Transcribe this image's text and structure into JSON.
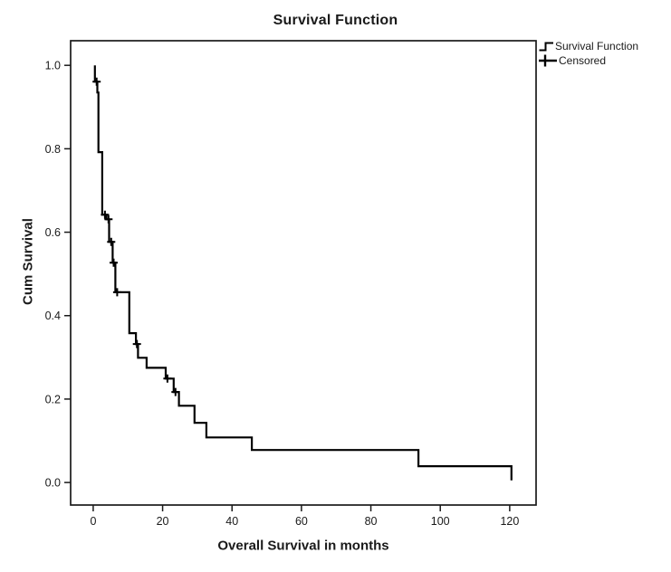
{
  "chart_data": {
    "type": "line",
    "subtype": "kaplan_meier_step_function",
    "title": "Survival Function",
    "xlabel": "Overall Survival in months",
    "ylabel": "Cum Survival",
    "x_ticks": [
      0,
      20,
      40,
      60,
      80,
      100,
      120
    ],
    "y_ticks": [
      0.0,
      0.2,
      0.4,
      0.6,
      0.8,
      1.0
    ],
    "y_tick_labels": [
      "0.0",
      "0.2",
      "0.4",
      "0.6",
      "0.8",
      "1.0"
    ],
    "xlim": [
      -6.5,
      127.6
    ],
    "ylim": [
      -0.054,
      1.059
    ],
    "grid": false,
    "legend_position": "top-right",
    "line_color": "#000000",
    "series": [
      {
        "name": "Survival Function",
        "start": {
          "t": 0.5,
          "s": 1.0
        },
        "steps": [
          [
            0.5,
            0.961
          ],
          [
            1.2,
            0.935
          ],
          [
            1.5,
            0.792
          ],
          [
            2.6,
            0.642
          ],
          [
            3.8,
            0.631
          ],
          [
            4.6,
            0.577
          ],
          [
            5.6,
            0.527
          ],
          [
            6.4,
            0.456
          ],
          [
            10.4,
            0.358
          ],
          [
            12.3,
            0.332
          ],
          [
            12.9,
            0.299
          ],
          [
            15.4,
            0.275
          ],
          [
            20.9,
            0.249
          ],
          [
            23.2,
            0.217
          ],
          [
            24.7,
            0.184
          ],
          [
            29.2,
            0.143
          ],
          [
            32.6,
            0.108
          ],
          [
            45.7,
            0.078
          ],
          [
            93.7,
            0.039
          ],
          [
            120.5,
            0.005
          ]
        ]
      }
    ],
    "censored": {
      "name": "Censored",
      "points": [
        [
          1.0,
          0.961
        ],
        [
          3.4,
          0.642
        ],
        [
          4.4,
          0.631
        ],
        [
          5.2,
          0.577
        ],
        [
          5.9,
          0.527
        ],
        [
          6.9,
          0.456
        ],
        [
          12.6,
          0.332
        ],
        [
          21.4,
          0.249
        ],
        [
          23.7,
          0.217
        ]
      ]
    }
  },
  "legend": {
    "items": [
      {
        "label": "Survival Function",
        "symbol": "step-line"
      },
      {
        "label": "Censored",
        "symbol": "plus"
      }
    ]
  }
}
